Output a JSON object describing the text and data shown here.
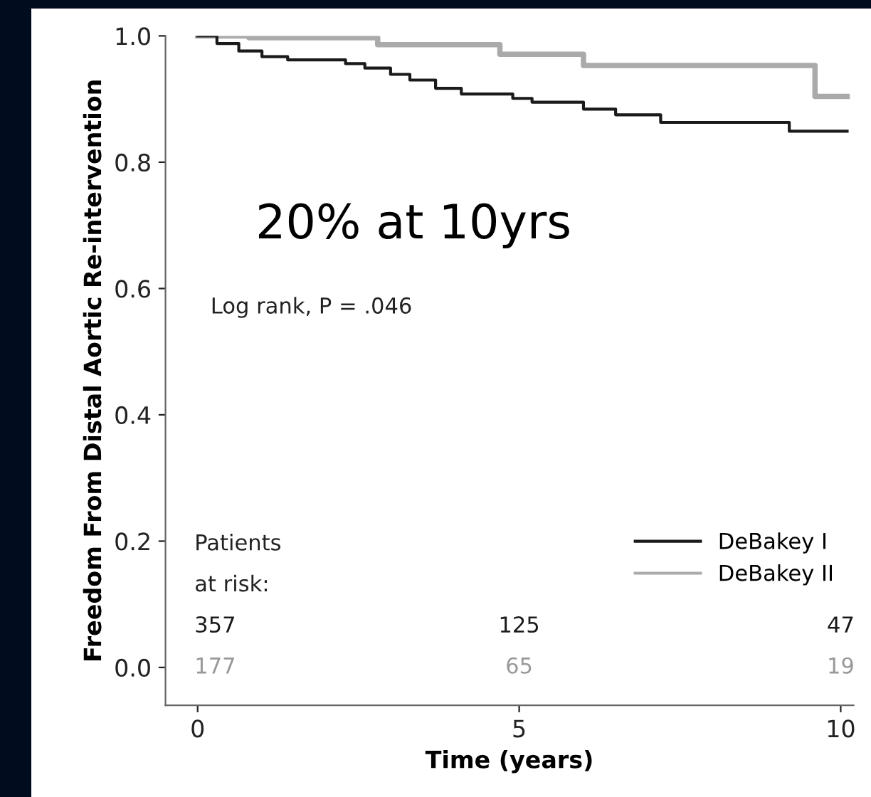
{
  "chart_data": {
    "type": "step",
    "xlabel": "Time (years)",
    "ylabel": "Freedom From Distal Aortic Re-intervention",
    "xlim": [
      -0.5,
      10.2
    ],
    "ylim": [
      -0.06,
      1.0
    ],
    "xticks": [
      0,
      5,
      10
    ],
    "yticks": [
      {
        "value": 0,
        "label": "0.0"
      },
      0.2,
      0.4,
      0.6,
      0.8,
      {
        "value": 1,
        "label": "1.0"
      }
    ],
    "grid": false,
    "legend": "lower right",
    "marker": "none",
    "line_style": "solid",
    "series": [
      {
        "name": "DeBakey I",
        "color": "#1a1a1a",
        "x": [
          0,
          0.3,
          0.64,
          1.0,
          1.4,
          2.3,
          2.6,
          3.0,
          3.3,
          3.7,
          4.1,
          4.9,
          5.2,
          6.0,
          6.5,
          7.2,
          9.2,
          10.1
        ],
        "values": [
          1.0,
          0.988,
          0.976,
          0.967,
          0.962,
          0.956,
          0.949,
          0.939,
          0.93,
          0.917,
          0.908,
          0.901,
          0.895,
          0.884,
          0.875,
          0.863,
          0.849,
          0.849
        ]
      },
      {
        "name": "DeBakey II",
        "color": "#aaaaaa",
        "x": [
          0,
          0.8,
          2.8,
          4.7,
          6.0,
          9.6,
          10.1
        ],
        "values": [
          1.0,
          0.997,
          0.986,
          0.971,
          0.953,
          0.904,
          0.904
        ]
      }
    ],
    "annotations": [
      "20% at 10yrs",
      "Log rank, P = .046",
      "Patients",
      "at risk:",
      "357",
      "125",
      "47",
      "177",
      "65",
      "19"
    ]
  }
}
